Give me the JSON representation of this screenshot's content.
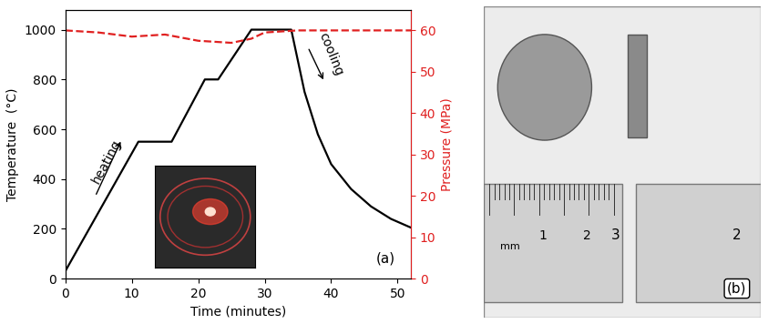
{
  "chart_data": {
    "type": "line",
    "x_label": "Time (minutes)",
    "y_label": "Temperature  (°C)",
    "y2_label": "Pressure (MPa)",
    "panel_label": "(a)",
    "annotations": [
      "heating",
      "cooling"
    ],
    "xlim": [
      0,
      52
    ],
    "xticks": [
      0,
      10,
      20,
      30,
      40,
      50
    ],
    "ylim": [
      0,
      1080
    ],
    "yticks": [
      0,
      200,
      400,
      600,
      800,
      1000
    ],
    "y2lim": [
      0,
      65
    ],
    "y2ticks": [
      0,
      10,
      20,
      30,
      40,
      50,
      60
    ],
    "series": [
      {
        "name": "Temperature",
        "color": "#000000",
        "line_style": "solid",
        "x": [
          0,
          11,
          16,
          21,
          23,
          28,
          34,
          36,
          38,
          40,
          43,
          46,
          49,
          52
        ],
        "values": [
          30,
          550,
          550,
          800,
          800,
          1000,
          1000,
          750,
          580,
          460,
          360,
          290,
          240,
          205
        ]
      },
      {
        "name": "Pressure",
        "color": "#e02020",
        "line_style": "dashed",
        "axis": "y2",
        "x": [
          0,
          5,
          10,
          15,
          20,
          25,
          28,
          30,
          35,
          40,
          52
        ],
        "values": [
          60,
          59.5,
          58.5,
          59,
          57.5,
          57,
          58,
          59.5,
          60,
          60,
          60
        ]
      }
    ]
  },
  "photo_panel": {
    "label": "(b)",
    "ruler_labels": [
      "mm",
      "1",
      "2",
      "3",
      "2"
    ]
  }
}
